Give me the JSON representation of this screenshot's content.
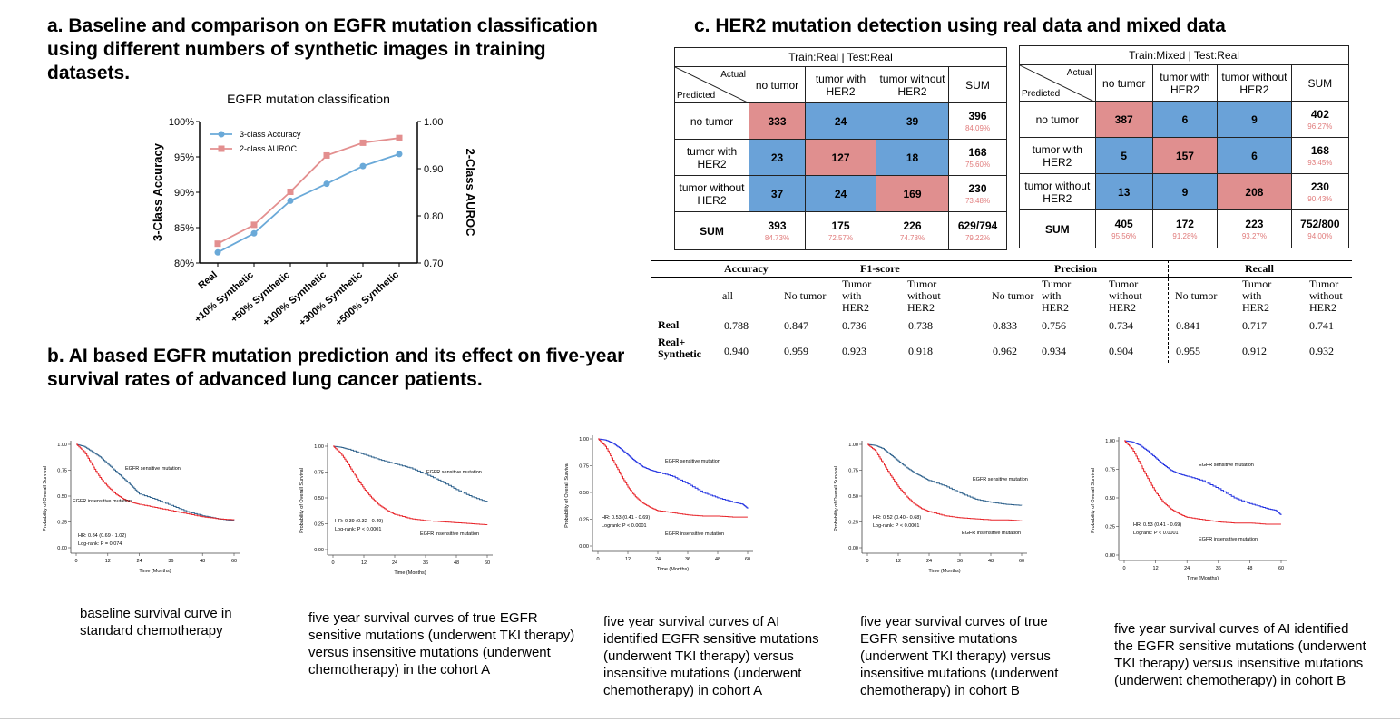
{
  "sections": {
    "a": "a. Baseline and comparison on EGFR mutation classification using different numbers of synthetic images in training datasets.",
    "b": "b. AI based EGFR mutation prediction and its effect on five-year survival rates of advanced lung cancer patients.",
    "c": "c. HER2 mutation detection using real data and mixed data"
  },
  "chart_data": [
    {
      "type": "line",
      "title": "EGFR mutation classification",
      "categories": [
        "Real",
        "+10% Synthetic",
        "+50% Synthetic",
        "+100% Synthetic",
        "+300% Synthetic",
        "+500% Synthetic"
      ],
      "ylabel": "3-Class Accuracy",
      "ylabel2": "2-Class AUROC",
      "ylim": [
        80,
        100
      ],
      "ylim2": [
        0.7,
        1.0
      ],
      "yticks": [
        "80%",
        "85%",
        "90%",
        "95%",
        "100%"
      ],
      "yticks2": [
        "0.70",
        "0.80",
        "0.90",
        "1.00"
      ],
      "legend_position": "top-left",
      "series": [
        {
          "name": "3-class Accuracy",
          "axis": "left",
          "color": "#6aa9d8",
          "marker": "circle",
          "values": [
            81.5,
            84.2,
            88.8,
            91.2,
            93.7,
            95.4
          ]
        },
        {
          "name": "2-class AUROC",
          "axis": "right",
          "color": "#e38f8f",
          "marker": "square",
          "values": [
            0.741,
            0.781,
            0.851,
            0.928,
            0.955,
            0.965
          ]
        }
      ]
    },
    {
      "type": "line",
      "xlabel": "Time (Months)",
      "ylabel": "Probability of Overall Survival",
      "xticks": [
        "0",
        "12",
        "24",
        "36",
        "48",
        "60"
      ],
      "yticks": [
        "0.00",
        "0.25",
        "0.50",
        "0.75",
        "1.00"
      ],
      "hr": "HR: 0.84 (0.69 - 1.02)",
      "logrank": "Log-rank: P = 0.074",
      "series": [
        {
          "name": "EGFR sensitive mutation",
          "color": "#2b5f8a",
          "x": [
            0,
            3,
            6,
            9,
            12,
            15,
            18,
            21,
            24,
            30,
            36,
            42,
            48,
            54,
            60
          ],
          "values": [
            1.0,
            0.98,
            0.93,
            0.88,
            0.81,
            0.74,
            0.67,
            0.6,
            0.52,
            0.47,
            0.41,
            0.35,
            0.31,
            0.28,
            0.26
          ]
        },
        {
          "name": "EGFR insensitive mutation",
          "color": "#e8262b",
          "x": [
            0,
            3,
            6,
            9,
            12,
            15,
            18,
            21,
            24,
            30,
            36,
            42,
            48,
            54,
            60
          ],
          "values": [
            1.0,
            0.93,
            0.8,
            0.68,
            0.59,
            0.52,
            0.47,
            0.44,
            0.42,
            0.39,
            0.36,
            0.33,
            0.3,
            0.28,
            0.27
          ]
        }
      ]
    },
    {
      "type": "line",
      "xlabel": "Time (Months)",
      "ylabel": "Probability of Overall Survival",
      "xticks": [
        "0",
        "12",
        "24",
        "36",
        "48",
        "60"
      ],
      "yticks": [
        "0.00",
        "0.25",
        "0.50",
        "0.75",
        "1.00"
      ],
      "hr": "HR: 0.39 (0.32 - 0.49)",
      "logrank": "Log-rank: P < 0.0001",
      "series": [
        {
          "name": "EGFR sensitive mutation",
          "color": "#2b5f8a",
          "x": [
            0,
            3,
            6,
            12,
            18,
            24,
            30,
            36,
            42,
            48,
            54,
            60
          ],
          "values": [
            1.0,
            0.99,
            0.97,
            0.92,
            0.87,
            0.83,
            0.79,
            0.73,
            0.66,
            0.58,
            0.51,
            0.46
          ]
        },
        {
          "name": "EGFR insensitive mutation",
          "color": "#e8262b",
          "x": [
            0,
            3,
            6,
            9,
            12,
            15,
            18,
            21,
            24,
            30,
            36,
            42,
            48,
            54,
            60
          ],
          "values": [
            1.0,
            0.93,
            0.82,
            0.7,
            0.59,
            0.5,
            0.43,
            0.38,
            0.34,
            0.3,
            0.28,
            0.27,
            0.26,
            0.25,
            0.24
          ]
        }
      ]
    },
    {
      "type": "line",
      "xlabel": "Time (Months)",
      "ylabel": "Probability of Overall Survival",
      "xticks": [
        "0",
        "12",
        "24",
        "36",
        "48",
        "60"
      ],
      "yticks": [
        "0.00",
        "0.25",
        "0.50",
        "0.75",
        "1.00"
      ],
      "hr": "HR: 0.53 (0.41 - 0.69)",
      "logrank": "Logrank: P < 0.0001",
      "series": [
        {
          "name": "EGFR sensitive mutation",
          "color": "#1f2fe0",
          "x": [
            0,
            3,
            6,
            9,
            12,
            15,
            18,
            21,
            24,
            30,
            36,
            42,
            48,
            54,
            58,
            60
          ],
          "values": [
            1.0,
            0.99,
            0.96,
            0.91,
            0.85,
            0.79,
            0.74,
            0.71,
            0.69,
            0.65,
            0.58,
            0.5,
            0.45,
            0.41,
            0.39,
            0.35
          ]
        },
        {
          "name": "EGFR insensitive mutation",
          "color": "#e8262b",
          "x": [
            0,
            3,
            6,
            9,
            12,
            15,
            18,
            21,
            24,
            30,
            36,
            42,
            48,
            54,
            60
          ],
          "values": [
            1.0,
            0.93,
            0.8,
            0.67,
            0.55,
            0.46,
            0.4,
            0.36,
            0.33,
            0.31,
            0.29,
            0.28,
            0.28,
            0.27,
            0.27
          ]
        }
      ]
    },
    {
      "type": "line",
      "xlabel": "Time (Months)",
      "ylabel": "Probability of Overall Survival",
      "xticks": [
        "0",
        "12",
        "24",
        "36",
        "48",
        "60"
      ],
      "yticks": [
        "0.00",
        "0.25",
        "0.50",
        "0.75",
        "1.00"
      ],
      "hr": "HR: 0.52 (0.40 - 0.68)",
      "logrank": "Log-rank: P < 0.0001",
      "series": [
        {
          "name": "EGFR sensitive mutation",
          "color": "#2b5f8a",
          "x": [
            0,
            3,
            6,
            9,
            12,
            15,
            18,
            21,
            24,
            30,
            36,
            42,
            48,
            54,
            60
          ],
          "values": [
            1.0,
            0.99,
            0.96,
            0.9,
            0.84,
            0.78,
            0.73,
            0.69,
            0.65,
            0.6,
            0.53,
            0.47,
            0.44,
            0.42,
            0.41
          ]
        },
        {
          "name": "EGFR insensitive mutation",
          "color": "#e8262b",
          "x": [
            0,
            3,
            6,
            9,
            12,
            15,
            18,
            21,
            24,
            30,
            36,
            42,
            48,
            54,
            60
          ],
          "values": [
            1.0,
            0.94,
            0.82,
            0.7,
            0.59,
            0.5,
            0.43,
            0.38,
            0.35,
            0.31,
            0.29,
            0.28,
            0.27,
            0.27,
            0.26
          ]
        }
      ]
    },
    {
      "type": "line",
      "xlabel": "Time (Months)",
      "ylabel": "Probability of Overall Survival",
      "xticks": [
        "0",
        "12",
        "24",
        "36",
        "48",
        "60"
      ],
      "yticks": [
        "0.00",
        "0.25",
        "0.50",
        "0.75",
        "1.00"
      ],
      "hr": "HR: 0.53 (0.41 - 0.69)",
      "logrank": "Logrank: P < 0.0001",
      "series": [
        {
          "name": "EGFR sensitive mutation",
          "color": "#1f2fe0",
          "x": [
            0,
            3,
            6,
            9,
            12,
            15,
            18,
            21,
            24,
            30,
            36,
            42,
            48,
            54,
            58,
            60
          ],
          "values": [
            1.0,
            0.99,
            0.96,
            0.91,
            0.85,
            0.79,
            0.74,
            0.71,
            0.69,
            0.65,
            0.58,
            0.5,
            0.45,
            0.41,
            0.39,
            0.35
          ]
        },
        {
          "name": "EGFR insensitive mutation",
          "color": "#e8262b",
          "x": [
            0,
            3,
            6,
            9,
            12,
            15,
            18,
            21,
            24,
            30,
            36,
            42,
            48,
            54,
            60
          ],
          "values": [
            1.0,
            0.93,
            0.8,
            0.67,
            0.55,
            0.46,
            0.4,
            0.36,
            0.33,
            0.31,
            0.29,
            0.28,
            0.28,
            0.27,
            0.27
          ]
        }
      ]
    },
    {
      "type": "table",
      "title": "Train:Real | Test:Real",
      "corner_actual": "Actual",
      "corner_predicted": "Predicted",
      "columns": [
        "no tumor",
        "tumor with HER2",
        "tumor without HER2",
        "SUM"
      ],
      "rows": [
        {
          "label": "no tumor",
          "values": [
            "333",
            "24",
            "39"
          ],
          "sum": "396",
          "pct": "84.09%"
        },
        {
          "label": "tumor with HER2",
          "values": [
            "23",
            "127",
            "18"
          ],
          "sum": "168",
          "pct": "75.60%"
        },
        {
          "label": "tumor without HER2",
          "values": [
            "37",
            "24",
            "169"
          ],
          "sum": "230",
          "pct": "73.48%"
        }
      ],
      "sum_row": {
        "label": "SUM",
        "values": [
          "393",
          "175",
          "226",
          "629/794"
        ],
        "pcts": [
          "84.73%",
          "72.57%",
          "74.78%",
          "79.22%"
        ]
      }
    },
    {
      "type": "table",
      "title": "Train:Mixed | Test:Real",
      "corner_actual": "Actual",
      "corner_predicted": "Predicted",
      "columns": [
        "no tumor",
        "tumor with HER2",
        "tumor without HER2",
        "SUM"
      ],
      "rows": [
        {
          "label": "no tumor",
          "values": [
            "387",
            "6",
            "9"
          ],
          "sum": "402",
          "pct": "96.27%"
        },
        {
          "label": "tumor with HER2",
          "values": [
            "5",
            "157",
            "6"
          ],
          "sum": "168",
          "pct": "93.45%"
        },
        {
          "label": "tumor without HER2",
          "values": [
            "13",
            "9",
            "208"
          ],
          "sum": "230",
          "pct": "90.43%"
        }
      ],
      "sum_row": {
        "label": "SUM",
        "values": [
          "405",
          "172",
          "223",
          "752/800"
        ],
        "pcts": [
          "95.56%",
          "91.28%",
          "93.27%",
          "94.00%"
        ]
      }
    },
    {
      "type": "table",
      "groups": [
        "Accuracy",
        "F1-score",
        "Precision",
        "Recall"
      ],
      "subheaders": [
        "all",
        "No tumor",
        "Tumor with HER2",
        "Tumor without HER2",
        "No tumor",
        "Tumor with HER2",
        "Tumor without HER2",
        "No tumor",
        "Tumor with HER2",
        "Tumor without HER2"
      ],
      "rows": [
        {
          "label": "Real",
          "values": [
            "0.788",
            "0.847",
            "0.736",
            "0.738",
            "0.833",
            "0.756",
            "0.734",
            "0.841",
            "0.717",
            "0.741"
          ]
        },
        {
          "label": "Real+ Synthetic",
          "values": [
            "0.940",
            "0.959",
            "0.923",
            "0.918",
            "0.962",
            "0.934",
            "0.904",
            "0.955",
            "0.912",
            "0.932"
          ]
        }
      ]
    }
  ],
  "captions": [
    "baseline survival curve in standard chemotherapy",
    "five year survival curves of true EGFR sensitive mutations (underwent TKI therapy) versus insensitive mutations (underwent chemotherapy) in the cohort A",
    "five year survival curves of AI identified EGFR sensitive mutations (underwent TKI therapy) versus insensitive mutations (underwent chemotherapy) in cohort A",
    "five year survival curves of true EGFR sensitive mutations (underwent TKI therapy) versus insensitive mutations (underwent chemotherapy) in cohort B",
    "five year survival curves of AI identified the EGFR sensitive mutations (underwent TKI therapy) versus insensitive mutations (underwent chemotherapy) in cohort B"
  ]
}
